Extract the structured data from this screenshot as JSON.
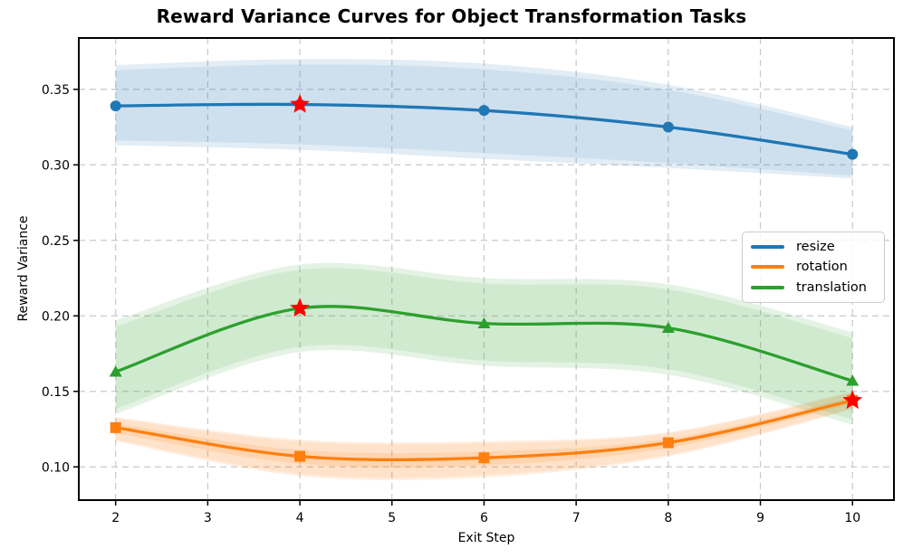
{
  "chart_data": {
    "type": "line",
    "title": "Reward Variance Curves for Object Transformation Tasks",
    "xlabel": "Exit Step",
    "ylabel": "Reward Variance",
    "x": [
      2,
      4,
      6,
      8,
      10
    ],
    "xlim": [
      1.6,
      10.45
    ],
    "ylim": [
      0.078,
      0.384
    ],
    "x_ticks": [
      2,
      3,
      4,
      5,
      6,
      7,
      8,
      9,
      10
    ],
    "x_tick_labels": [
      "2",
      "3",
      "4",
      "5",
      "6",
      "7",
      "8",
      "9",
      "10"
    ],
    "y_ticks": [
      0.1,
      0.15,
      0.2,
      0.25,
      0.3,
      0.35
    ],
    "y_tick_labels": [
      "0.10",
      "0.15",
      "0.20",
      "0.25",
      "0.30",
      "0.35"
    ],
    "grid": true,
    "grid_color": "#c9c9c9",
    "legend_position": "center right",
    "series": [
      {
        "name": "resize",
        "color": "#1f77b4",
        "marker": "circle",
        "values": [
          0.339,
          0.34,
          0.336,
          0.325,
          0.307
        ],
        "band_upper": [
          0.366,
          0.37,
          0.367,
          0.353,
          0.325
        ],
        "band_lower": [
          0.313,
          0.31,
          0.304,
          0.298,
          0.291
        ]
      },
      {
        "name": "rotation",
        "color": "#ff7f0e",
        "marker": "square",
        "core_band": true,
        "values": [
          0.126,
          0.107,
          0.106,
          0.116,
          0.144
        ],
        "band_upper": [
          0.133,
          0.118,
          0.117,
          0.123,
          0.15
        ],
        "band_lower": [
          0.117,
          0.094,
          0.093,
          0.107,
          0.138
        ]
      },
      {
        "name": "translation",
        "color": "#2ca02c",
        "marker": "triangle",
        "values": [
          0.163,
          0.205,
          0.195,
          0.192,
          0.157
        ],
        "band_upper": [
          0.197,
          0.234,
          0.225,
          0.221,
          0.189
        ],
        "band_lower": [
          0.135,
          0.176,
          0.167,
          0.161,
          0.128
        ]
      }
    ],
    "star_markers": {
      "color": "#ff0000",
      "points": [
        {
          "series": "resize",
          "x": 4,
          "y": 0.34
        },
        {
          "series": "translation",
          "x": 4,
          "y": 0.205
        },
        {
          "series": "rotation",
          "x": 10,
          "y": 0.144
        }
      ]
    }
  }
}
